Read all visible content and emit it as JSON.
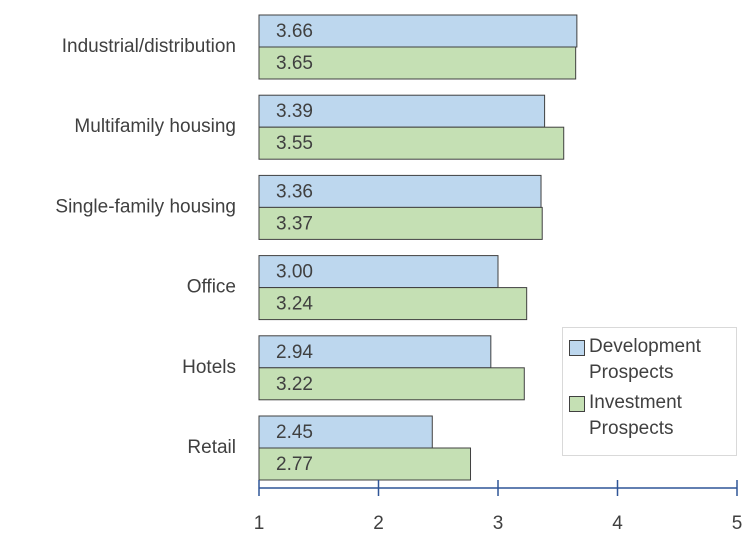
{
  "chart_data": {
    "type": "bar",
    "orientation": "horizontal",
    "categories": [
      "Industrial/distribution",
      "Multifamily housing",
      "Single-family housing",
      "Office",
      "Hotels",
      "Retail"
    ],
    "series": [
      {
        "name": "Development Prospects",
        "color": "#bdd7ee",
        "values": [
          3.66,
          3.39,
          3.36,
          3,
          2.94,
          2.45
        ],
        "value_labels": [
          "3.66",
          "3.39",
          "3.36",
          "3.00",
          "2.94",
          "2.45"
        ]
      },
      {
        "name": "Investment Prospects",
        "color": "#c5e0b4",
        "values": [
          3.65,
          3.55,
          3.37,
          3.24,
          3.22,
          2.77
        ],
        "value_labels": [
          "3.65",
          "3.55",
          "3.37",
          "3.24",
          "3.22",
          "2.77"
        ]
      }
    ],
    "xlim": [
      1,
      5
    ],
    "xticks": [
      1,
      2,
      3,
      4,
      5
    ],
    "legend": "lower right"
  }
}
